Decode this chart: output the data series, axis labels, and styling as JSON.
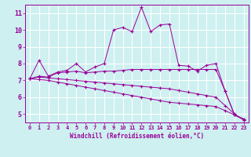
{
  "xlabel": "Windchill (Refroidissement éolien,°C)",
  "bg_color": "#cef0f0",
  "line_color": "#990099",
  "grid_color": "#ffffff",
  "xlim": [
    -0.5,
    23.5
  ],
  "ylim": [
    4.5,
    11.5
  ],
  "yticks": [
    5,
    6,
    7,
    8,
    9,
    10,
    11
  ],
  "xticks": [
    0,
    1,
    2,
    3,
    4,
    5,
    6,
    7,
    8,
    9,
    10,
    11,
    12,
    13,
    14,
    15,
    16,
    17,
    18,
    19,
    20,
    21,
    22,
    23
  ],
  "lines": [
    {
      "x": [
        0,
        1,
        2,
        3,
        4,
        5,
        6,
        7,
        8,
        9,
        10,
        11,
        12,
        13,
        14,
        15,
        16,
        17,
        18,
        19,
        20,
        21,
        22,
        23
      ],
      "y": [
        7.1,
        8.2,
        7.25,
        7.5,
        7.6,
        8.0,
        7.5,
        7.8,
        8.0,
        10.0,
        10.15,
        9.9,
        11.35,
        9.9,
        10.3,
        10.35,
        7.9,
        7.85,
        7.55,
        7.9,
        8.0,
        6.35,
        4.95,
        4.7
      ]
    },
    {
      "x": [
        0,
        1,
        2,
        3,
        4,
        5,
        6,
        7,
        8,
        9,
        10,
        11,
        12,
        13,
        14,
        15,
        16,
        17,
        18,
        19,
        20,
        21,
        22,
        23
      ],
      "y": [
        7.1,
        7.25,
        7.2,
        7.45,
        7.5,
        7.55,
        7.45,
        7.5,
        7.55,
        7.55,
        7.6,
        7.65,
        7.65,
        7.65,
        7.65,
        7.65,
        7.65,
        7.65,
        7.65,
        7.65,
        7.65,
        6.35,
        4.95,
        4.7
      ]
    },
    {
      "x": [
        0,
        1,
        2,
        3,
        4,
        5,
        6,
        7,
        8,
        9,
        10,
        11,
        12,
        13,
        14,
        15,
        16,
        17,
        18,
        19,
        20,
        21,
        22,
        23
      ],
      "y": [
        7.1,
        7.2,
        7.15,
        7.1,
        7.05,
        7.0,
        6.95,
        6.9,
        6.85,
        6.8,
        6.75,
        6.7,
        6.65,
        6.6,
        6.55,
        6.5,
        6.4,
        6.3,
        6.2,
        6.1,
        6.0,
        5.5,
        5.0,
        4.65
      ]
    },
    {
      "x": [
        0,
        1,
        2,
        3,
        4,
        5,
        6,
        7,
        8,
        9,
        10,
        11,
        12,
        13,
        14,
        15,
        16,
        17,
        18,
        19,
        20,
        21,
        22,
        23
      ],
      "y": [
        7.1,
        7.05,
        7.0,
        6.9,
        6.8,
        6.7,
        6.6,
        6.5,
        6.4,
        6.3,
        6.2,
        6.1,
        6.0,
        5.9,
        5.8,
        5.7,
        5.65,
        5.6,
        5.55,
        5.5,
        5.45,
        5.2,
        4.95,
        4.65
      ]
    }
  ]
}
